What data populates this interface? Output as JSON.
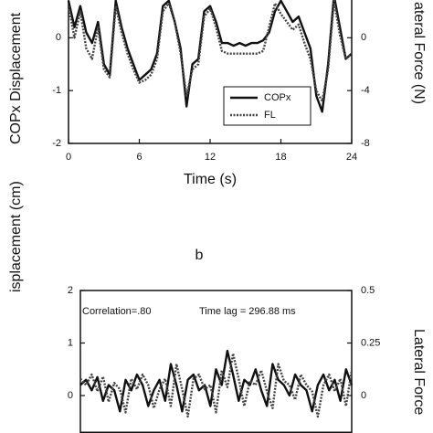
{
  "chart_data": [
    {
      "type": "line",
      "xlabel": "Time (s)",
      "ylabel": "COPx Displacement",
      "y2label": "ateral Force (N)",
      "x": [
        0,
        0.5,
        1,
        1.5,
        2,
        2.5,
        3,
        3.5,
        4,
        4.5,
        5,
        5.5,
        6,
        6.5,
        7,
        7.5,
        8,
        8.5,
        9,
        9.5,
        10,
        10.5,
        11,
        11.5,
        12,
        12.5,
        13,
        13.5,
        14,
        14.5,
        15,
        15.5,
        16,
        16.5,
        17,
        17.5,
        18,
        18.5,
        19,
        19.5,
        20,
        20.5,
        21,
        21.5,
        22,
        22.5,
        23,
        23.5,
        24
      ],
      "xlim": [
        0,
        24
      ],
      "xticks": [
        0,
        6,
        12,
        18,
        24
      ],
      "ylim": [
        -2,
        1
      ],
      "yticks": [
        0,
        -1,
        -2
      ],
      "y2lim": [
        -8,
        4
      ],
      "y2ticks": [
        0,
        -4,
        -8
      ],
      "series": [
        {
          "name": "COPx",
          "color": "#111111",
          "values": [
            0.7,
            0.2,
            0.6,
            0.1,
            -0.1,
            0.3,
            -0.5,
            -0.7,
            0.7,
            0.2,
            -0.2,
            -0.5,
            -0.8,
            -0.7,
            -0.6,
            -0.3,
            0.6,
            0.7,
            0.3,
            -0.2,
            -1.3,
            -0.5,
            -0.4,
            0.5,
            0.6,
            0.3,
            -0.1,
            -0.1,
            -0.15,
            -0.1,
            -0.15,
            -0.1,
            -0.1,
            -0.05,
            0.1,
            0.5,
            0.7,
            0.5,
            0.3,
            0.4,
            0.1,
            -0.2,
            -1.1,
            -1.4,
            -0.5,
            0.8,
            0.2,
            -0.4,
            -0.3
          ]
        },
        {
          "name": "FL",
          "color": "#444444",
          "axis": "y2",
          "values": [
            2.4,
            0,
            2,
            -0.8,
            -1.6,
            0.8,
            -2.4,
            -3,
            2.4,
            0.4,
            -1.2,
            -2.4,
            -3.4,
            -3.2,
            -2.8,
            -1.6,
            2,
            2.6,
            1.2,
            -1.2,
            -4.4,
            -2.4,
            -2,
            1.6,
            2.2,
            0.8,
            -1,
            -1.2,
            -1.2,
            -1.2,
            -1.2,
            -1.2,
            -1.2,
            -1,
            0.8,
            2.6,
            1.8,
            1.2,
            0.6,
            1,
            -0.4,
            -1.6,
            -4,
            -4.8,
            -2.4,
            2.8,
            0.2,
            -1.6,
            -1.2
          ]
        }
      ]
    },
    {
      "type": "line",
      "title": "b",
      "ylabel": "isplacement (cm)",
      "y2label": "Lateral Force",
      "annotations": [
        "Correlation=.80",
        "Time lag = 296.88 ms"
      ],
      "x": [
        0,
        0.5,
        1,
        1.5,
        2,
        2.5,
        3,
        3.5,
        4,
        4.5,
        5,
        5.5,
        6,
        6.5,
        7,
        7.5,
        8,
        8.5,
        9,
        9.5,
        10,
        10.5,
        11,
        11.5,
        12,
        12.5,
        13,
        13.5,
        14,
        14.5,
        15,
        15.5,
        16,
        16.5,
        17,
        17.5,
        18,
        18.5,
        19,
        19.5,
        20,
        20.5,
        21,
        21.5,
        22,
        22.5,
        23,
        23.5,
        24
      ],
      "xlim": [
        0,
        24
      ],
      "ylim": [
        -0.7,
        2
      ],
      "yticks": [
        2,
        1,
        0
      ],
      "y2lim": [
        -0.175,
        0.5
      ],
      "y2ticks": [
        0.5,
        0.25,
        0
      ],
      "series": [
        {
          "color": "#111111",
          "values": [
            0.2,
            0.3,
            0.1,
            0.35,
            -0.1,
            0.2,
            0.1,
            -0.3,
            0.3,
            0.1,
            0.4,
            0.2,
            -0.2,
            0.1,
            0.3,
            -0.1,
            0.6,
            0.2,
            -0.3,
            0.3,
            0.4,
            0.1,
            0.2,
            -0.2,
            0.5,
            0.2,
            0.85,
            0.4,
            -0.1,
            0.3,
            0.2,
            0.5,
            0.1,
            -0.2,
            0.6,
            0.3,
            0.2,
            0,
            0.4,
            0.2,
            0.1,
            -0.3,
            0.2,
            0.4,
            0.1,
            0.3,
            -0.1,
            0.5,
            0.2
          ]
        },
        {
          "color": "#444444",
          "axis": "y2",
          "values": [
            0.08,
            0.05,
            0.1,
            0.02,
            0.09,
            -0.03,
            0.06,
            0.03,
            -0.08,
            0.08,
            0.03,
            0.1,
            0.05,
            -0.06,
            0.03,
            0.08,
            -0.05,
            0.15,
            0.03,
            -0.1,
            0.08,
            0.1,
            0.03,
            0.05,
            -0.08,
            0.12,
            0.04,
            0.2,
            0.08,
            -0.05,
            0.07,
            0.05,
            0.12,
            0.02,
            -0.06,
            0.15,
            0.07,
            0.05,
            -0.02,
            0.1,
            0.05,
            0.02,
            -0.1,
            0.05,
            0.1,
            0.02,
            0.08,
            -0.05,
            0.12
          ]
        }
      ]
    }
  ]
}
